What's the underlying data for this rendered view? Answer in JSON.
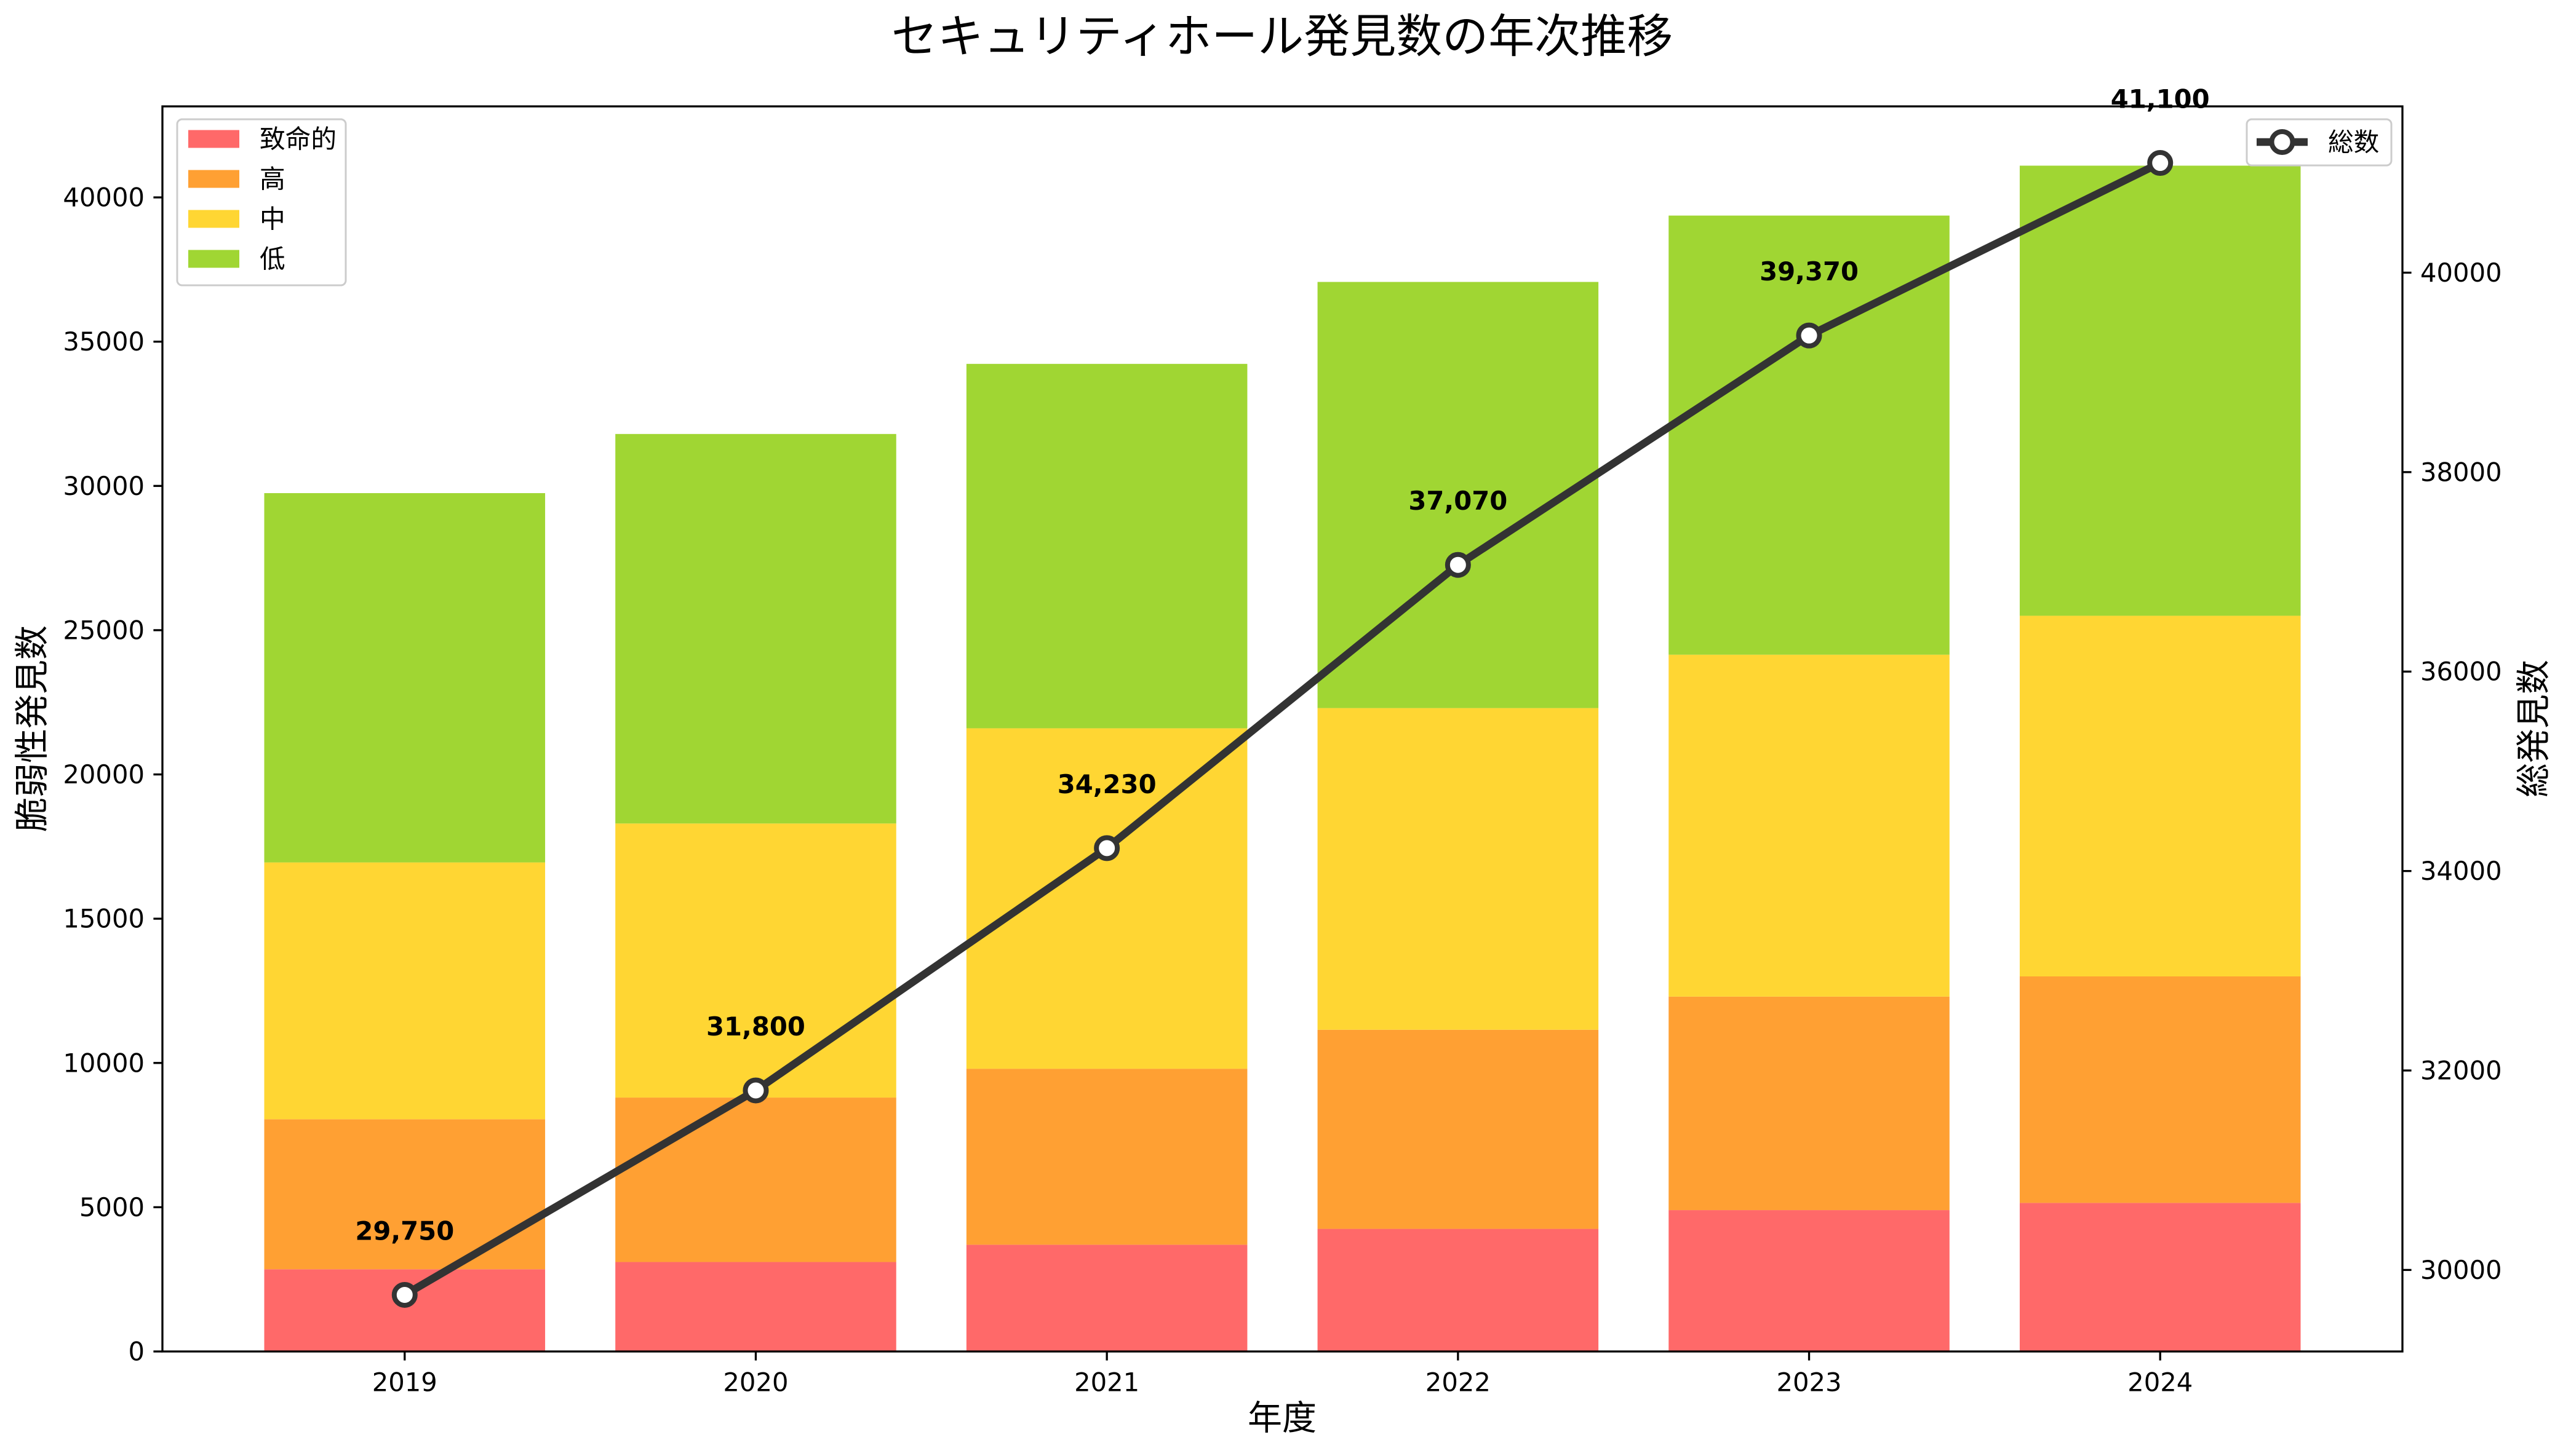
{
  "chart_data": {
    "type": "bar",
    "stacked": true,
    "title": "セキュリティホール発見数の年次推移",
    "xlabel": "年度",
    "ylabel": "脆弱性発見数",
    "y2label": "総発見数",
    "categories": [
      "2019",
      "2020",
      "2021",
      "2022",
      "2023",
      "2024"
    ],
    "series": [
      {
        "name": "致命的",
        "color": "#FF6969",
        "values": [
          2850,
          3100,
          3700,
          4250,
          4900,
          5150
        ]
      },
      {
        "name": "高",
        "color": "#FFA033",
        "values": [
          5200,
          5700,
          6100,
          6900,
          7400,
          7850
        ]
      },
      {
        "name": "中",
        "color": "#FFD633",
        "values": [
          8900,
          9500,
          11800,
          11150,
          11850,
          12500
        ]
      },
      {
        "name": "低",
        "color": "#A0D633",
        "values": [
          12800,
          13500,
          12630,
          14770,
          15220,
          15600
        ]
      }
    ],
    "total": {
      "type": "line",
      "name": "総数",
      "axis": "right",
      "color": "#333333",
      "marker": "circle",
      "values": [
        29750,
        31800,
        34230,
        37070,
        39370,
        41100
      ],
      "labels": [
        "29,750",
        "31,800",
        "34,230",
        "37,070",
        "39,370",
        "41,100"
      ]
    },
    "ylim": [
      0,
      43155
    ],
    "y2lim": [
      29182.5,
      41667.5
    ],
    "yticks": [
      0,
      5000,
      10000,
      15000,
      20000,
      25000,
      30000,
      35000,
      40000
    ],
    "y2ticks": [
      30000,
      32000,
      34000,
      36000,
      38000,
      40000
    ],
    "grid": false,
    "legend_bars": "upper-left",
    "legend_line": "upper-right"
  }
}
